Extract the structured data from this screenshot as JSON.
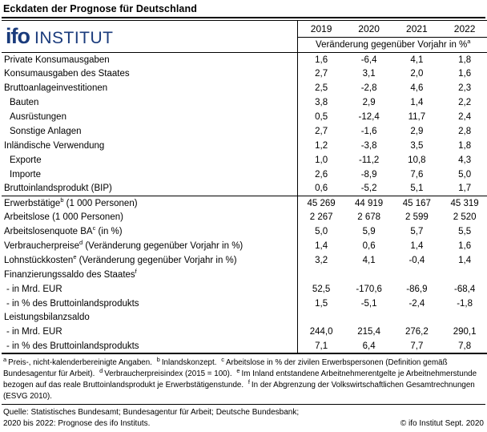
{
  "title": "Eckdaten der Prognose für Deutschland",
  "logo": {
    "ifo": "ifo",
    "institut": "INSTITUT"
  },
  "colors": {
    "ifo_blue": "#1a3b7c",
    "text": "#000000",
    "line": "#000000"
  },
  "table": {
    "years": [
      "2019",
      "2020",
      "2021",
      "2022"
    ],
    "header_note": {
      "text": "Veränderung gegenüber Vorjahr in %",
      "sup": "a"
    },
    "rows": [
      {
        "label": "Private Konsumausgaben",
        "sup": "",
        "suffix": "",
        "indent": 0,
        "separator_after": false,
        "values": [
          "1,6",
          "-6,4",
          "4,1",
          "1,8"
        ]
      },
      {
        "label": "Konsumausgaben des Staates",
        "sup": "",
        "suffix": "",
        "indent": 0,
        "separator_after": false,
        "values": [
          "2,7",
          "3,1",
          "2,0",
          "1,6"
        ]
      },
      {
        "label": "Bruttoanlageinvestitionen",
        "sup": "",
        "suffix": "",
        "indent": 0,
        "separator_after": false,
        "values": [
          "2,5",
          "-2,8",
          "4,6",
          "2,3"
        ]
      },
      {
        "label": "Bauten",
        "sup": "",
        "suffix": "",
        "indent": 1,
        "separator_after": false,
        "values": [
          "3,8",
          "2,9",
          "1,4",
          "2,2"
        ]
      },
      {
        "label": "Ausrüstungen",
        "sup": "",
        "suffix": "",
        "indent": 1,
        "separator_after": false,
        "values": [
          "0,5",
          "-12,4",
          "11,7",
          "2,4"
        ]
      },
      {
        "label": "Sonstige Anlagen",
        "sup": "",
        "suffix": "",
        "indent": 1,
        "separator_after": false,
        "values": [
          "2,7",
          "-1,6",
          "2,9",
          "2,8"
        ]
      },
      {
        "label": "Inländische Verwendung",
        "sup": "",
        "suffix": "",
        "indent": 0,
        "separator_after": false,
        "values": [
          "1,2",
          "-3,8",
          "3,5",
          "1,8"
        ]
      },
      {
        "label": "Exporte",
        "sup": "",
        "suffix": "",
        "indent": 1,
        "separator_after": false,
        "values": [
          "1,0",
          "-11,2",
          "10,8",
          "4,3"
        ]
      },
      {
        "label": "Importe",
        "sup": "",
        "suffix": "",
        "indent": 1,
        "separator_after": false,
        "values": [
          "2,6",
          "-8,9",
          "7,6",
          "5,0"
        ]
      },
      {
        "label": "Bruttoinlandsprodukt (BIP)",
        "sup": "",
        "suffix": "",
        "indent": 0,
        "separator_after": true,
        "values": [
          "0,6",
          "-5,2",
          "5,1",
          "1,7"
        ]
      },
      {
        "label": "Erwerbstätige",
        "sup": "b",
        "suffix": " (1 000 Personen)",
        "indent": 0,
        "separator_after": false,
        "values": [
          "45 269",
          "44 919",
          "45 167",
          "45 319"
        ]
      },
      {
        "label": "Arbeitslose (1 000 Personen)",
        "sup": "",
        "suffix": "",
        "indent": 0,
        "separator_after": false,
        "values": [
          "2 267",
          "2 678",
          "2 599",
          "2 520"
        ]
      },
      {
        "label": "Arbeitslosenquote BA",
        "sup": "c",
        "suffix": " (in %)",
        "indent": 0,
        "separator_after": false,
        "values": [
          "5,0",
          "5,9",
          "5,7",
          "5,5"
        ]
      },
      {
        "label": "Verbraucherpreise",
        "sup": "d",
        "suffix": " (Veränderung gegenüber Vorjahr in %)",
        "indent": 0,
        "separator_after": false,
        "values": [
          "1,4",
          "0,6",
          "1,4",
          "1,6"
        ]
      },
      {
        "label": "Lohnstückkosten",
        "sup": "e",
        "suffix": " (Veränderung gegenüber Vorjahr in %)",
        "indent": 0,
        "separator_after": false,
        "values": [
          "3,2",
          "4,1",
          "-0,4",
          "1,4"
        ]
      },
      {
        "label": "Finanzierungssaldo des Staates",
        "sup": "f",
        "suffix": "",
        "indent": 0,
        "separator_after": false,
        "values": [
          "",
          "",
          "",
          ""
        ]
      },
      {
        "label": "- in Mrd. EUR",
        "sup": "",
        "suffix": "",
        "indent": 2,
        "separator_after": false,
        "values": [
          "52,5",
          "-170,6",
          "-86,9",
          "-68,4"
        ]
      },
      {
        "label": "- in % des Bruttoinlandsprodukts",
        "sup": "",
        "suffix": "",
        "indent": 2,
        "separator_after": false,
        "values": [
          "1,5",
          "-5,1",
          "-2,4",
          "-1,8"
        ]
      },
      {
        "label": "Leistungsbilanzsaldo",
        "sup": "",
        "suffix": "",
        "indent": 0,
        "separator_after": false,
        "values": [
          "",
          "",
          "",
          ""
        ]
      },
      {
        "label": "- in Mrd. EUR",
        "sup": "",
        "suffix": "",
        "indent": 2,
        "separator_after": false,
        "values": [
          "244,0",
          "215,4",
          "276,2",
          "290,1"
        ]
      },
      {
        "label": "- in % des Bruttoinlandsprodukts",
        "sup": "",
        "suffix": "",
        "indent": 2,
        "separator_after": false,
        "values": [
          "7,1",
          "6,4",
          "7,7",
          "7,8"
        ]
      }
    ]
  },
  "footnotes": [
    {
      "sup": "a",
      "text": "Preis-, nicht-kalenderbereinigte Angaben."
    },
    {
      "sup": "b",
      "text": "Inlandskonzept."
    },
    {
      "sup": "c",
      "text": "Arbeitslose in % der zivilen Erwerbspersonen (Definition gemäß Bundesagentur für Arbeit)."
    },
    {
      "sup": "d",
      "text": "Verbraucherpreisindex (2015 = 100)."
    },
    {
      "sup": "e",
      "text": "Im Inland entstandene Arbeitnehmerentgelte je Arbeitnehmerstunde bezogen auf das reale Bruttoinlandsprodukt je Erwerbstätigenstunde."
    },
    {
      "sup": "f",
      "text": "In der Abgrenzung der Volkswirtschaftlichen Gesamtrechnungen (ESVG 2010)."
    }
  ],
  "source": {
    "line1": "Quelle: Statistisches Bundesamt; Bundesagentur für Arbeit; Deutsche Bundesbank;",
    "line2": "2020 bis 2022: Prognose des ifo Instituts.",
    "copyright": "© ifo Institut Sept. 2020"
  }
}
